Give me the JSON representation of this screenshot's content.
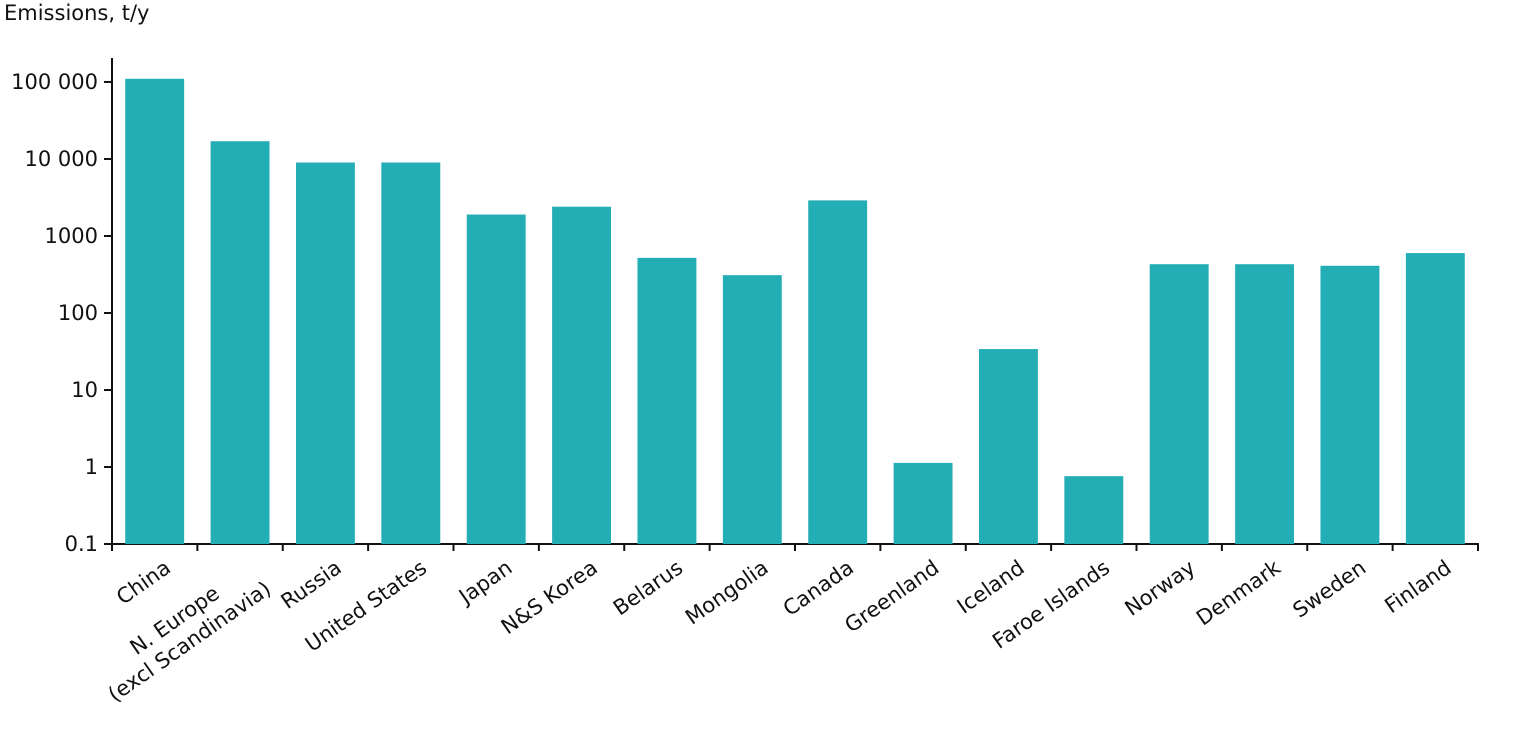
{
  "chart_data": {
    "type": "bar",
    "y_label": "Emissions, t/y",
    "log_scale": true,
    "categories": [
      "China",
      [
        "N. Europe",
        "(excl Scandinavia)"
      ],
      "Russia",
      "United States",
      "Japan",
      "N&S Korea",
      "Belarus",
      "Mongolia",
      "Canada",
      "Greenland",
      "Iceland",
      "Faroe Islands",
      "Norway",
      "Denmark",
      "Sweden",
      "Finland"
    ],
    "values": [
      110000,
      17000,
      9000,
      9000,
      1900,
      2400,
      520,
      310,
      2900,
      1.13,
      34,
      0.76,
      430,
      430,
      410,
      600
    ],
    "color": "#23adb5",
    "ylim": [
      0.1,
      200000
    ],
    "yticks": [
      0.1,
      1,
      10,
      100,
      1000,
      {
        "value": 10000,
        "label": "10 000"
      },
      {
        "value": 100000,
        "label": "100 000"
      }
    ],
    "grid": false
  }
}
